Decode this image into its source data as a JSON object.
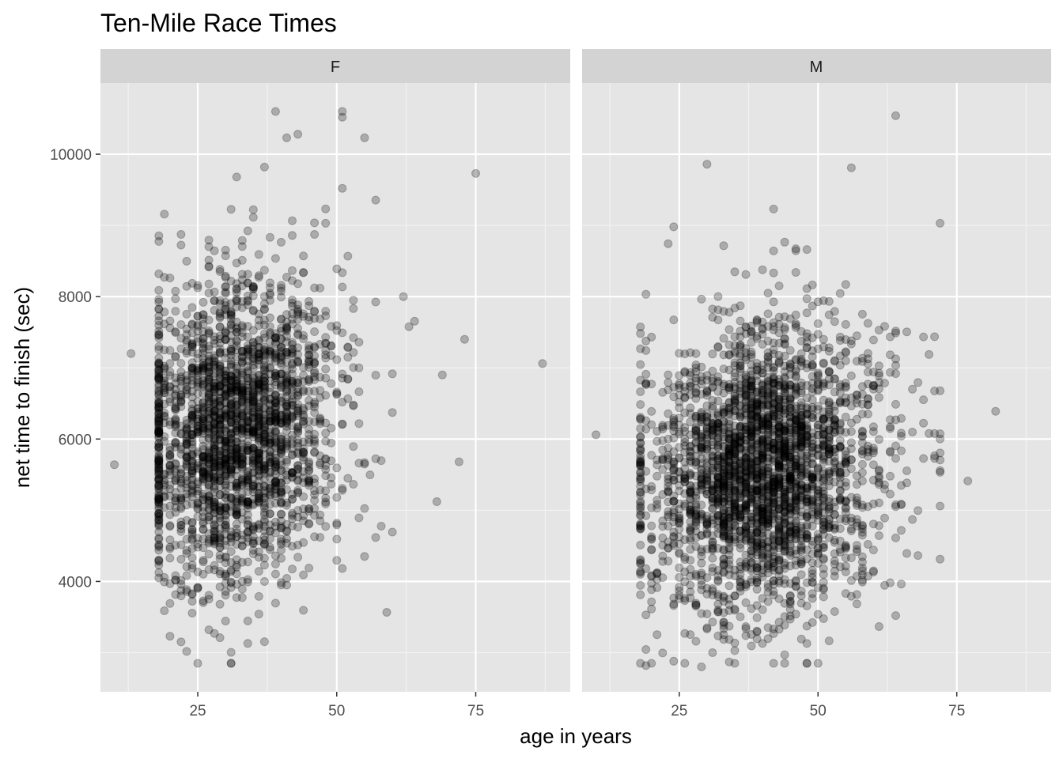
{
  "colors": {
    "panel_background": "#e5e5e5",
    "strip_background": "#d3d3d3",
    "grid_major": "#ffffff",
    "grid_minor": "#f2f2f2",
    "point_fill": "#000000",
    "point_alpha": 0.25,
    "tick_text": "#4d4d4d"
  },
  "chart_data": {
    "type": "scatter",
    "title": "Ten-Mile Race Times",
    "xlabel": "age in years",
    "ylabel": "net time to finish (sec)",
    "xlim": [
      7.5,
      92
    ],
    "ylim": [
      2450,
      11000
    ],
    "x_ticks": [
      25,
      50,
      75
    ],
    "y_ticks": [
      4000,
      6000,
      8000,
      10000
    ],
    "grid": true,
    "legend": "none",
    "facets": [
      {
        "label": "F",
        "n_points": 2400,
        "distribution": {
          "age_mean": 32,
          "age_sd": 9.5,
          "age_min": 10,
          "age_max": 88,
          "time_mean": 6150,
          "time_sd": 1050
        },
        "notable_points": [
          {
            "x": 39,
            "y": 10600
          },
          {
            "x": 51,
            "y": 10600
          },
          {
            "x": 51,
            "y": 10520
          },
          {
            "x": 41,
            "y": 10230
          },
          {
            "x": 43,
            "y": 10280
          },
          {
            "x": 55,
            "y": 10230
          },
          {
            "x": 37,
            "y": 9820
          },
          {
            "x": 75,
            "y": 9730
          },
          {
            "x": 87,
            "y": 7060
          },
          {
            "x": 73,
            "y": 7400
          },
          {
            "x": 69,
            "y": 6900
          },
          {
            "x": 72,
            "y": 5680
          },
          {
            "x": 68,
            "y": 5120
          },
          {
            "x": 10,
            "y": 5640
          },
          {
            "x": 13,
            "y": 7200
          },
          {
            "x": 34,
            "y": 3130
          },
          {
            "x": 29,
            "y": 3210
          },
          {
            "x": 27,
            "y": 3320
          }
        ]
      },
      {
        "label": "M",
        "n_points": 2900,
        "distribution": {
          "age_mean": 40,
          "age_sd": 11,
          "age_min": 10,
          "age_max": 82,
          "time_mean": 5550,
          "time_sd": 1000
        },
        "notable_points": [
          {
            "x": 64,
            "y": 10540
          },
          {
            "x": 30,
            "y": 9860
          },
          {
            "x": 56,
            "y": 9810
          },
          {
            "x": 42,
            "y": 9230
          },
          {
            "x": 72,
            "y": 9030
          },
          {
            "x": 24,
            "y": 8980
          },
          {
            "x": 82,
            "y": 6390
          },
          {
            "x": 77,
            "y": 5410
          },
          {
            "x": 10,
            "y": 6060
          },
          {
            "x": 19,
            "y": 2820
          },
          {
            "x": 29,
            "y": 2800
          },
          {
            "x": 24,
            "y": 2880
          },
          {
            "x": 34,
            "y": 2870
          }
        ]
      }
    ]
  }
}
